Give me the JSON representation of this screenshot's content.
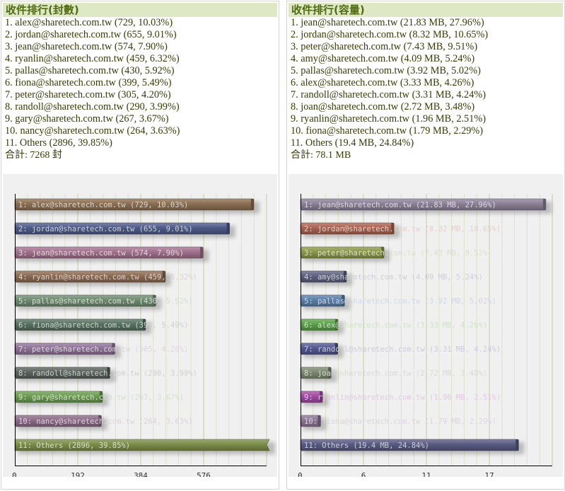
{
  "panels": [
    {
      "title": "收件排行(封數)",
      "items": [
        "1. alex@sharetech.com.tw (729, 10.03%)",
        "2. jordan@sharetech.com.tw (655, 9.01%)",
        "3. jean@sharetech.com.tw (574, 7.90%)",
        "4. ryanlin@sharetech.com.tw (459, 6.32%)",
        "5. pallas@sharetech.com.tw (430, 5.92%)",
        "6. fiona@sharetech.com.tw (399, 5.49%)",
        "7. peter@sharetech.com.tw (305, 4.20%)",
        "8. randoll@sharetech.com.tw (290, 3.99%)",
        "9. gary@sharetech.com.tw (267, 3.67%)",
        "10. nancy@sharetech.com.tw (264, 3.63%)",
        "11. Others (2896, 39.85%)"
      ],
      "total": "合計: 7268 封"
    },
    {
      "title": "收件排行(容量)",
      "items": [
        "1. jean@sharetech.com.tw (21.83 MB, 27.96%)",
        "2. jordan@sharetech.com.tw (8.32 MB, 10.65%)",
        "3. peter@sharetech.com.tw (7.43 MB, 9.51%)",
        "4. amy@sharetech.com.tw (4.09 MB, 5.24%)",
        "5. pallas@sharetech.com.tw (3.92 MB, 5.02%)",
        "6. alex@sharetech.com.tw (3.33 MB, 4.26%)",
        "7. randoll@sharetech.com.tw (3.31 MB, 4.24%)",
        "8. joan@sharetech.com.tw (2.72 MB, 3.48%)",
        "9. ryanlin@sharetech.com.tw (1.96 MB, 2.51%)",
        "10. fiona@sharetech.com.tw (1.79 MB, 2.29%)",
        "11. Others (19.4 MB, 24.84%)"
      ],
      "total": "合計: 78.1 MB"
    }
  ],
  "chart_data": [
    {
      "type": "bar",
      "orientation": "horizontal",
      "title": "收件排行(封數)",
      "categories": [
        "alex@sharetech.com.tw",
        "jordan@sharetech.com.tw",
        "jean@sharetech.com.tw",
        "ryanlin@sharetech.com.tw",
        "pallas@sharetech.com.tw",
        "fiona@sharetech.com.tw",
        "peter@sharetech.com.tw",
        "randoll@sharetech.com.tw",
        "gary@sharetech.com.tw",
        "nancy@sharetech.com.tw",
        "Others"
      ],
      "values": [
        729,
        655,
        574,
        459,
        430,
        399,
        305,
        290,
        267,
        264,
        2896
      ],
      "bar_labels": [
        "1: alex@sharetech.com.tw (729, 10.03%)",
        "2: jordan@sharetech.com.tw (655, 9.01%)",
        "3: jean@sharetech.com.tw (574, 7.90%)",
        "4: ryanlin@sharetech.com.tw (459, 6.32%)",
        "5: pallas@sharetech.com.tw (430, 5.92%)",
        "6: fiona@sharetech.com.tw (399, 5.49%)",
        "7: peter@sharetech.com.tw (305, 4.20%)",
        "8: randoll@sharetech.com.tw (290, 3.99%)",
        "9: gary@sharetech.com.tw (267, 3.67%)",
        "10: nancy@sharetech.com.tw (264, 3.63%)",
        "11: Others (2896, 39.85%)"
      ],
      "colors": [
        "#8a6e52",
        "#4e5a86",
        "#a0708c",
        "#8a6a52",
        "#6e8a70",
        "#56705e",
        "#8e7296",
        "#5a615c",
        "#6a9a50",
        "#8a6a86",
        "#7a8c48"
      ],
      "xticks": [
        "0",
        "192",
        "384",
        "576"
      ],
      "xlim": [
        0,
        768
      ],
      "truncated": [
        false,
        false,
        false,
        false,
        false,
        false,
        false,
        false,
        false,
        false,
        true
      ],
      "xlabel": "",
      "ylabel": "",
      "grid": true
    },
    {
      "type": "bar",
      "orientation": "horizontal",
      "title": "收件排行(容量)",
      "categories": [
        "jean@sharetech.com.tw",
        "jordan@sharetech.com.tw",
        "peter@sharetech.com.tw",
        "amy@sharetech.com.tw",
        "pallas@sharetech.com.tw",
        "alex@sharetech.com.tw",
        "randoll@sharetech.com.tw",
        "joan@sharetech.com.tw",
        "ryanlin@sharetech.com.tw",
        "fiona@sharetech.com.tw",
        "Others"
      ],
      "values": [
        21.83,
        8.32,
        7.43,
        4.09,
        3.92,
        3.33,
        3.31,
        2.72,
        1.96,
        1.79,
        19.4
      ],
      "unit": "MB",
      "bar_labels": [
        "1: jean@sharetech.com.tw (21.83 MB, 27.96%)",
        "2: jordan@sharetech.com.tw (8.32 MB, 10.65%)",
        "3: peter@sharetech.com.tw (7.43 MB, 9.51%)",
        "4: amy@sharetech.com.tw (4.09 MB, 5.24%)",
        "5: pallas@sharetech.com.tw (3.92 MB, 5.02%)",
        "6: alex@sharetech.com.tw (3.33 MB, 4.26%)",
        "7: randoll@sharetech.com.tw (3.31 MB, 4.24%)",
        "8: joan@sharetech.com.tw (2.72 MB, 3.48%)",
        "9: ryanlin@sharetech.com.tw (1.96 MB, 2.51%)",
        "10: fiona@sharetech.com.tw (1.79 MB, 2.29%)",
        "11: Others (19.4 MB, 24.84%)"
      ],
      "colors": [
        "#8a8096",
        "#a86250",
        "#8a9648",
        "#5c607e",
        "#5a7ea8",
        "#5aa048",
        "#52568e",
        "#7a8870",
        "#a04aa0",
        "#8a7494",
        "#565a80"
      ],
      "xticks": [
        "0",
        "6",
        "11",
        "17"
      ],
      "xlim": [
        0,
        22.4
      ],
      "truncated": [
        false,
        false,
        false,
        false,
        false,
        false,
        false,
        false,
        false,
        false,
        false
      ],
      "xlabel": "",
      "ylabel": "",
      "grid": true
    }
  ]
}
